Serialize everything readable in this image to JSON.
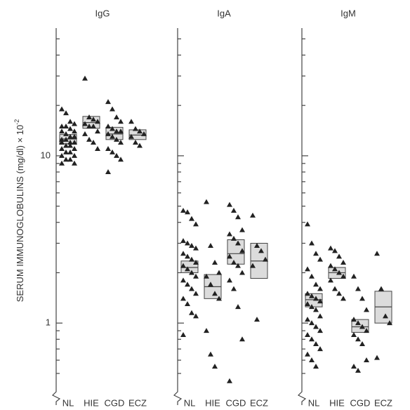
{
  "chart_data": [
    {
      "type": "dotplot",
      "title": "IgG",
      "y_label": "SERUM IMMUNOGLOBULINS (mg/dl) × 10",
      "y_label_exponent": "-2",
      "log_scale": true,
      "ylim": [
        0.4,
        58
      ],
      "yticks": [
        1,
        10
      ],
      "minor_yticks": [
        0.5,
        0.6,
        0.7,
        0.8,
        0.9,
        2,
        3,
        4,
        5,
        6,
        7,
        8,
        9,
        20,
        30,
        40,
        50
      ],
      "categories": [
        "NL",
        "HIE",
        "CGD",
        "ECZ"
      ],
      "points": [
        [
          19,
          18,
          16,
          15.5,
          15,
          15,
          14.5,
          14,
          14,
          13.5,
          13,
          13,
          12.5,
          12.5,
          12,
          12,
          12,
          11.5,
          11.5,
          11,
          11,
          10.5,
          10.5,
          10,
          10,
          9.5,
          9.5,
          9,
          9
        ],
        [
          29,
          17,
          16.5,
          16,
          15.5,
          15,
          15,
          14,
          13.5,
          12.5,
          12,
          11
        ],
        [
          21,
          19,
          17,
          16,
          15,
          14.5,
          14,
          14,
          13.5,
          13,
          12.5,
          12,
          11,
          10.5,
          10,
          9.5,
          8
        ],
        [
          16,
          14.5,
          14,
          13.5,
          13,
          12,
          11.5
        ]
      ],
      "boxes": [
        {
          "low": 11.8,
          "mean": 12.6,
          "high": 13.4
        },
        {
          "low": 14.6,
          "mean": 15.8,
          "high": 17.2
        },
        {
          "low": 12.5,
          "mean": 13.5,
          "high": 14.8
        },
        {
          "low": 12.5,
          "mean": 13.3,
          "high": 14.3
        }
      ]
    },
    {
      "type": "dotplot",
      "title": "IgA",
      "categories": [
        "NL",
        "HIE",
        "CGD",
        "ECZ"
      ],
      "points": [
        [
          4.7,
          4.6,
          4.2,
          3.9,
          3.1,
          3.0,
          2.9,
          2.8,
          2.6,
          2.5,
          2.4,
          2.3,
          2.2,
          2.1,
          2.0,
          1.9,
          1.8,
          1.7,
          1.6,
          1.5,
          1.4,
          1.3,
          1.15,
          1.1,
          0.85
        ],
        [
          5.3,
          2.9,
          2.3,
          2.0,
          1.9,
          1.7,
          1.5,
          1.4,
          0.9,
          0.65,
          0.55
        ],
        [
          5.1,
          4.7,
          4.3,
          3.6,
          3.4,
          3.2,
          3.0,
          2.7,
          2.5,
          2.3,
          2.2,
          2.0,
          1.8,
          1.6,
          1.25,
          0.8,
          0.45
        ],
        [
          4.4,
          2.9,
          2.7,
          2.4,
          2.2,
          1.05
        ]
      ],
      "boxes": [
        {
          "low": 2.0,
          "mean": 2.15,
          "high": 2.35
        },
        {
          "low": 1.4,
          "mean": 1.65,
          "high": 1.95
        },
        {
          "low": 2.25,
          "mean": 2.6,
          "high": 3.15
        },
        {
          "low": 1.85,
          "mean": 2.35,
          "high": 3.0
        }
      ]
    },
    {
      "type": "dotplot",
      "title": "IgM",
      "categories": [
        "NL",
        "HIE",
        "CGD",
        "ECZ"
      ],
      "points": [
        [
          3.9,
          3.0,
          2.6,
          2.4,
          2.1,
          1.9,
          1.7,
          1.6,
          1.5,
          1.45,
          1.4,
          1.35,
          1.3,
          1.25,
          1.2,
          1.1,
          1.05,
          1.0,
          0.95,
          0.9,
          0.85,
          0.8,
          0.75,
          0.7,
          0.65,
          0.6,
          0.55
        ],
        [
          2.8,
          2.7,
          2.5,
          2.3,
          2.2,
          2.1,
          2.0,
          1.9,
          1.8,
          1.6,
          1.5,
          1.4
        ],
        [
          1.9,
          1.6,
          1.4,
          1.2,
          1.05,
          1.0,
          0.95,
          0.9,
          0.85,
          0.8,
          0.75,
          0.6,
          0.55,
          0.52
        ],
        [
          2.6,
          1.6,
          1.1,
          1.0,
          0.62
        ]
      ],
      "boxes": [
        {
          "low": 1.25,
          "mean": 1.38,
          "high": 1.5
        },
        {
          "low": 1.85,
          "mean": 2.0,
          "high": 2.15
        },
        {
          "low": 0.88,
          "mean": 0.95,
          "high": 1.05
        },
        {
          "low": 1.0,
          "mean": 1.25,
          "high": 1.55
        }
      ]
    }
  ]
}
